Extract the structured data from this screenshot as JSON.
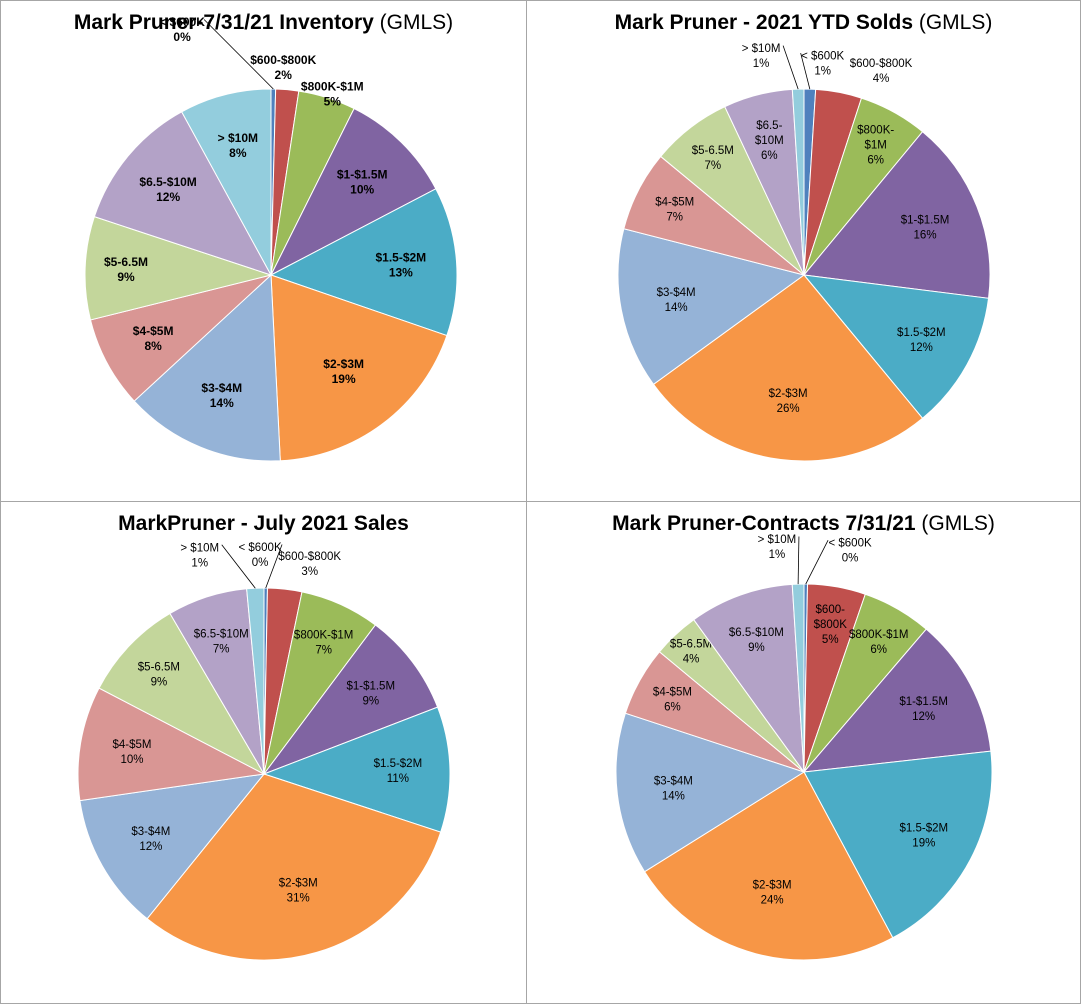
{
  "colors": [
    "#4f81bd",
    "#c0504d",
    "#9bbb59",
    "#8064a2",
    "#4bacc6",
    "#f79646",
    "#95b3d7",
    "#d99694",
    "#c3d69b",
    "#b3a2c7",
    "#93cddd"
  ],
  "chart_data": [
    {
      "type": "pie",
      "title": "Mark Pruner-7/31/21 Inventory",
      "subtitle": "(GMLS)",
      "categories": [
        "< $600K",
        "$600-$800K",
        "$800K-$1M",
        "$1-$1.5M",
        "$1.5-$2M",
        "$2-$3M",
        "$3-$4M",
        "$4-$5M",
        "$5-6.5M",
        "$6.5-$10M",
        "> $10M"
      ],
      "values": [
        0.4,
        2,
        5,
        10,
        13,
        19,
        14,
        8,
        9,
        12,
        8
      ],
      "percent_labels": [
        "0%",
        "2%",
        "5%",
        "10%",
        "13%",
        "19%",
        "14%",
        "8%",
        "9%",
        "12%",
        "8%"
      ]
    },
    {
      "type": "pie",
      "title": "Mark Pruner - 2021 YTD Solds",
      "subtitle": "(GMLS)",
      "categories": [
        "< $600K",
        "$600-$800K",
        "$800K-$1M",
        "$1-$1.5M",
        "$1.5-$2M",
        "$2-$3M",
        "$3-$4M",
        "$4-$5M",
        "$5-6.5M",
        "$6.5-$10M",
        "> $10M"
      ],
      "values": [
        1,
        4,
        6,
        16,
        12,
        26,
        14,
        7,
        7,
        6,
        1
      ],
      "percent_labels": [
        "1%",
        "4%",
        "6%",
        "16%",
        "12%",
        "26%",
        "14%",
        "7%",
        "7%",
        "6%",
        "1%"
      ]
    },
    {
      "type": "pie",
      "title": "MarkPruner -  July 2021 Sales",
      "subtitle": "",
      "categories": [
        "< $600K",
        "$600-$800K",
        "$800K-$1M",
        "$1-$1.5M",
        "$1.5-$2M",
        "$2-$3M",
        "$3-$4M",
        "$4-$5M",
        "$5-6.5M",
        "$6.5-$10M",
        "> $10M"
      ],
      "values": [
        0.3,
        3,
        7,
        9,
        11,
        31,
        12,
        10,
        9,
        7,
        1.5
      ],
      "percent_labels": [
        "0%",
        "3%",
        "7%",
        "9%",
        "11%",
        "31%",
        "12%",
        "10%",
        "9%",
        "7%",
        "1%"
      ]
    },
    {
      "type": "pie",
      "title": "Mark Pruner-Contracts 7/31/21",
      "subtitle": "(GMLS)",
      "categories": [
        "< $600K",
        "$600-$800K",
        "$800K-$1M",
        "$1-$1.5M",
        "$1.5-$2M",
        "$2-$3M",
        "$3-$4M",
        "$4-$5M",
        "$5-6.5M",
        "$6.5-$10M",
        "> $10M"
      ],
      "values": [
        0.3,
        5,
        6,
        12,
        19,
        24,
        14,
        6,
        4,
        9,
        1
      ],
      "percent_labels": [
        "0%",
        "5%",
        "6%",
        "12%",
        "19%",
        "24%",
        "14%",
        "6%",
        "4%",
        "9%",
        "1%"
      ]
    }
  ]
}
